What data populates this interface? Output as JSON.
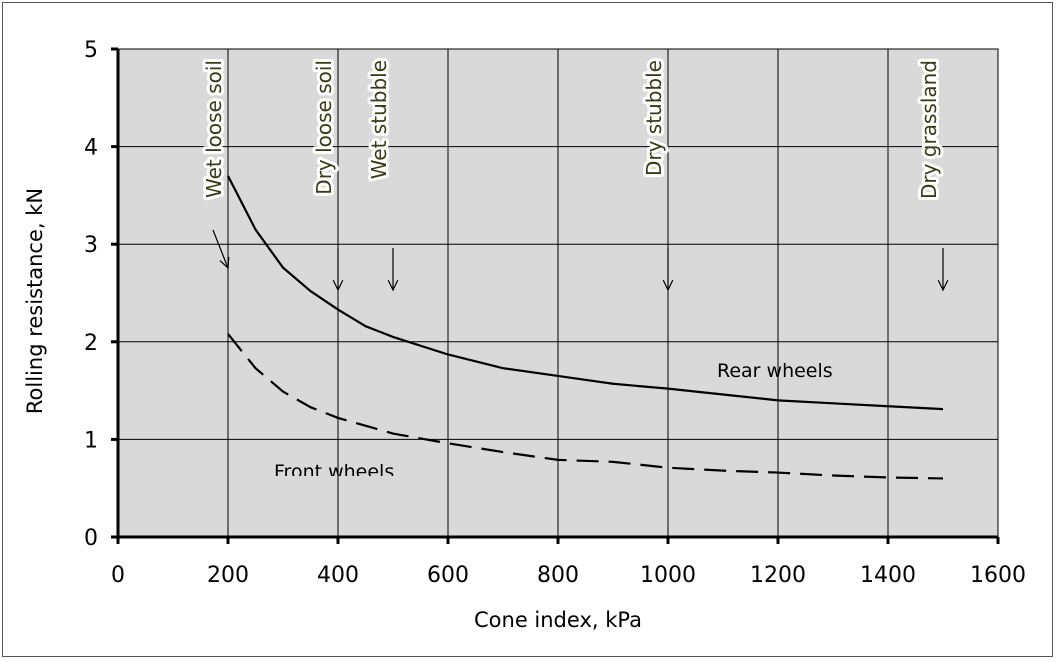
{
  "chart_data": {
    "type": "line",
    "xlabel": "Cone index, kPa",
    "ylabel": "Rolling resistance, kN",
    "xlim": [
      0,
      1600
    ],
    "ylim": [
      0,
      5
    ],
    "xticks": [
      "0",
      "200",
      "400",
      "600",
      "800",
      "1000",
      "1200",
      "1400",
      "1600"
    ],
    "yticks": [
      "0",
      "1",
      "2",
      "3",
      "4",
      "5"
    ],
    "grid": true,
    "plot_background": "#d9d9d9",
    "series": [
      {
        "name": "Rear wheels",
        "style": "solid",
        "color": "#000000",
        "x": [
          200,
          250,
          300,
          350,
          400,
          450,
          500,
          600,
          700,
          800,
          900,
          1000,
          1100,
          1200,
          1300,
          1400,
          1500
        ],
        "y": [
          3.7,
          3.15,
          2.76,
          2.52,
          2.33,
          2.16,
          2.05,
          1.87,
          1.73,
          1.65,
          1.57,
          1.52,
          1.46,
          1.4,
          1.37,
          1.34,
          1.31
        ]
      },
      {
        "name": "Front wheels",
        "style": "dashed",
        "color": "#000000",
        "x": [
          200,
          250,
          300,
          350,
          400,
          500,
          600,
          700,
          800,
          900,
          1000,
          1100,
          1200,
          1300,
          1400,
          1500
        ],
        "y": [
          2.08,
          1.73,
          1.49,
          1.33,
          1.22,
          1.06,
          0.96,
          0.87,
          0.79,
          0.77,
          0.71,
          0.68,
          0.66,
          0.63,
          0.61,
          0.6
        ]
      }
    ],
    "annotations": [
      {
        "text": "Wet loose soil",
        "x": 200
      },
      {
        "text": "Dry loose soil",
        "x": 400
      },
      {
        "text": "Wet stubble",
        "x": 500
      },
      {
        "text": "Dry stubble",
        "x": 1000
      },
      {
        "text": "Dry grassland",
        "x": 1500
      }
    ]
  }
}
